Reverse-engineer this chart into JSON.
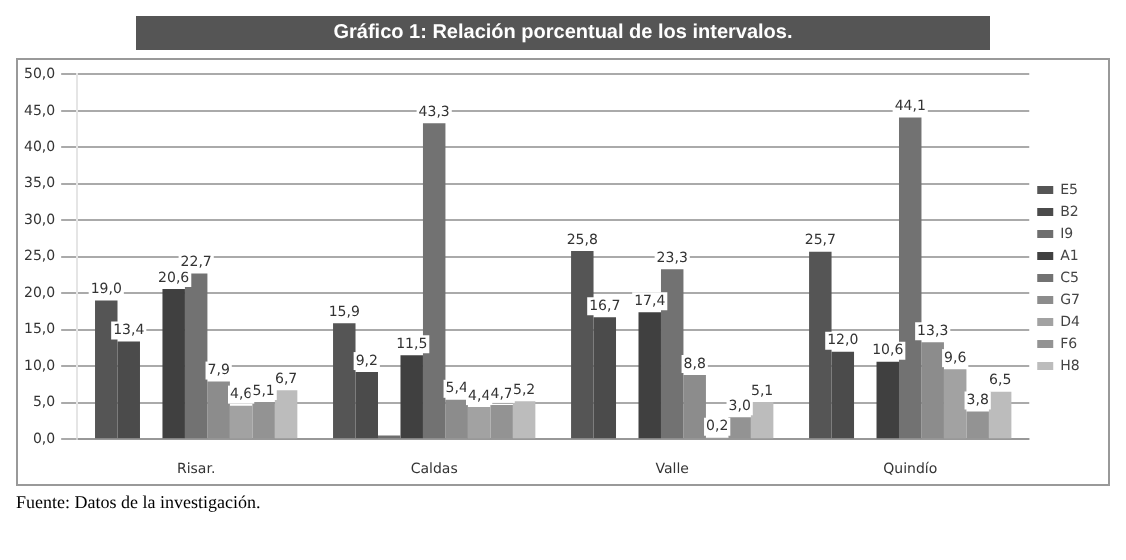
{
  "chart_data": {
    "type": "bar",
    "title": "Gráfico 1: Relación porcentual de los intervalos.",
    "annotations": [
      "Fuente: Datos de la investigación."
    ],
    "categories": [
      "Risar.",
      "Caldas",
      "Valle",
      "Quindío"
    ],
    "series": [
      {
        "name": "E5",
        "color": "#555555",
        "values": [
          19.0,
          15.9,
          25.8,
          25.7
        ],
        "value_labels": [
          "19,0",
          "15,9",
          "25,8",
          "25,7"
        ]
      },
      {
        "name": "B2",
        "color": "#4b4b4b",
        "values": [
          13.4,
          9.2,
          16.7,
          12.0
        ],
        "value_labels": [
          "13,4",
          "9,2",
          "16,7",
          "12,0"
        ]
      },
      {
        "name": "I9",
        "color": "#6e6e6e",
        "values": [
          null,
          0.5,
          null,
          null
        ],
        "value_labels": [
          null,
          null,
          null,
          null
        ]
      },
      {
        "name": "A1",
        "color": "#404040",
        "values": [
          20.6,
          11.5,
          17.4,
          10.6
        ],
        "value_labels": [
          "20,6",
          "11,5",
          "17,4",
          "10,6"
        ]
      },
      {
        "name": "C5",
        "color": "#727272",
        "values": [
          22.7,
          43.3,
          23.3,
          44.1
        ],
        "value_labels": [
          "22,7",
          "43,3",
          "23,3",
          "44,1"
        ]
      },
      {
        "name": "G7",
        "color": "#8c8c8c",
        "values": [
          7.9,
          5.4,
          8.8,
          13.3
        ],
        "value_labels": [
          "7,9",
          "5,4",
          "8,8",
          "13,3"
        ]
      },
      {
        "name": "D4",
        "color": "#a2a2a2",
        "values": [
          4.6,
          4.4,
          0.2,
          9.6
        ],
        "value_labels": [
          "4,6",
          "4,4",
          "0,2",
          "9,6"
        ]
      },
      {
        "name": "F6",
        "color": "#939393",
        "values": [
          5.1,
          4.7,
          3.0,
          3.8
        ],
        "value_labels": [
          "5,1",
          "4,7",
          "3,0",
          "3,8"
        ]
      },
      {
        "name": "H8",
        "color": "#bcbcbc",
        "values": [
          6.7,
          5.2,
          5.1,
          6.5
        ],
        "value_labels": [
          "6,7",
          "5,2",
          "5,1",
          "6,5"
        ]
      }
    ],
    "ylim": [
      0,
      50
    ],
    "yticks": [
      {
        "value": 0,
        "label": "0,0"
      },
      {
        "value": 5,
        "label": "5,0"
      },
      {
        "value": 10,
        "label": "10,0"
      },
      {
        "value": 15,
        "label": "15,0"
      },
      {
        "value": 20,
        "label": "20,0"
      },
      {
        "value": 25,
        "label": "25,0"
      },
      {
        "value": 30,
        "label": "30,0"
      },
      {
        "value": 35,
        "label": "35,0"
      },
      {
        "value": 40,
        "label": "40,0"
      },
      {
        "value": 45,
        "label": "45,0"
      },
      {
        "value": 50,
        "label": "50,0"
      }
    ],
    "grid": "y",
    "legend": "right"
  }
}
